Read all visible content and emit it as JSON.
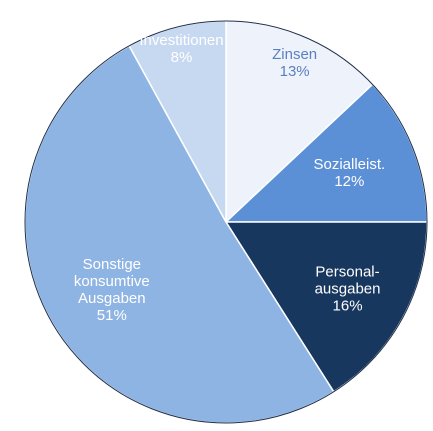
{
  "chart_data": {
    "type": "pie",
    "categories": [
      "Zinsen",
      "Sozialleist.",
      "Personal-\nausgaben",
      "Sonstige\nkonsumtive\nAusgaben",
      "Investitionen"
    ],
    "values": [
      13,
      12,
      16,
      51,
      8
    ],
    "value_labels": [
      "13%",
      "12%",
      "16%",
      "51%",
      "8%"
    ],
    "colors": [
      "#eef3fb",
      "#5b8fd6",
      "#17375e",
      "#8eb4e3",
      "#c6d9f1"
    ],
    "label_colors": [
      "#5b7fc0",
      "#ffffff",
      "#ffffff",
      "#ffffff",
      "#ffffff"
    ]
  }
}
